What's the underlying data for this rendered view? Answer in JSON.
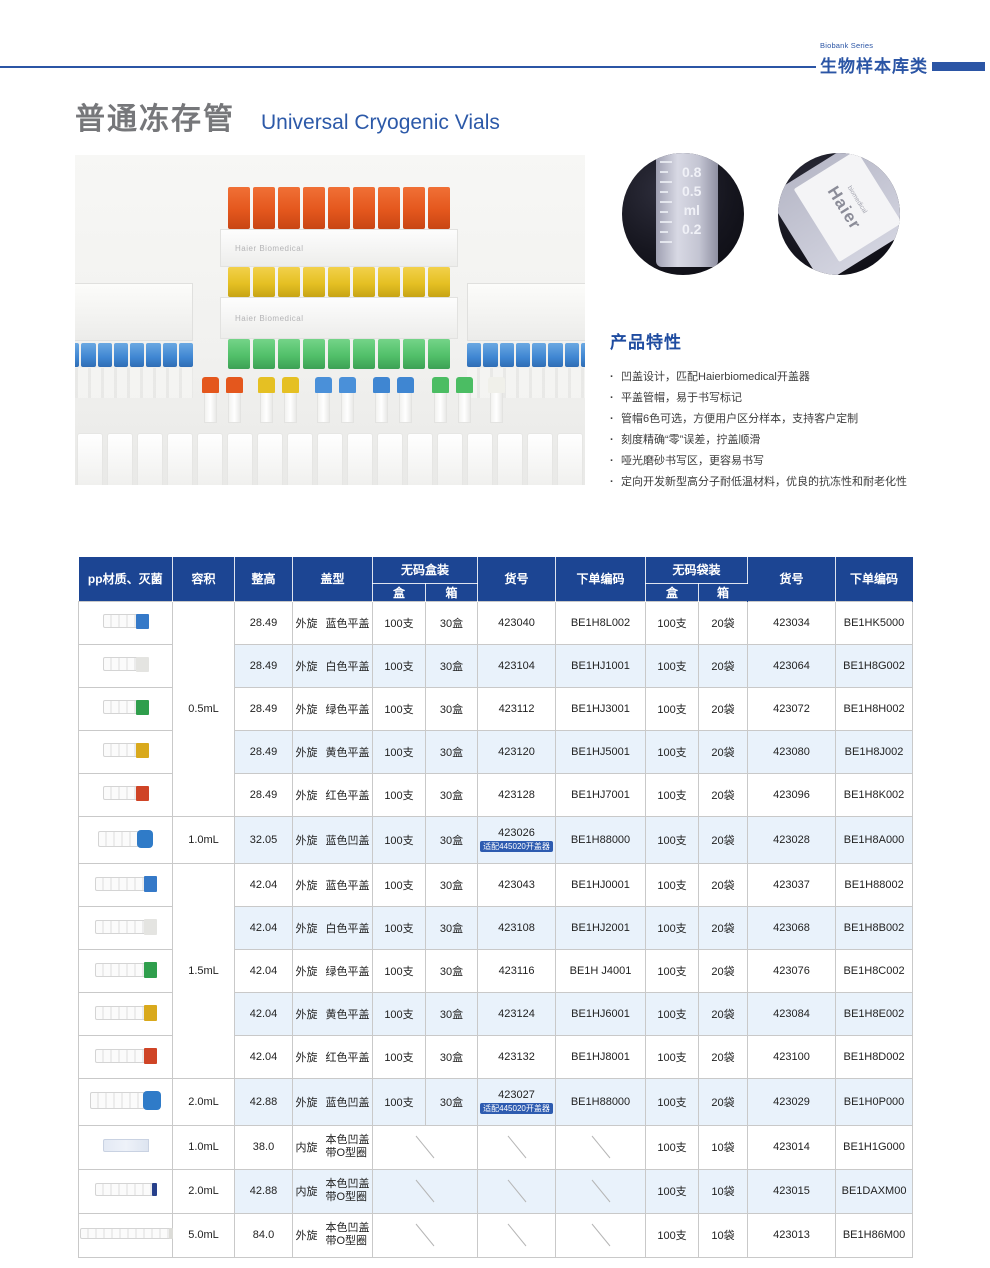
{
  "banner": {
    "series_en": "Biobank Series",
    "series_cn": "生物样本库类",
    "accent_color": "#2b55a5"
  },
  "title": {
    "cn": "普通冻存管",
    "en": "Universal Cryogenic Vials"
  },
  "photo": {
    "rack_label": "Haier Biomedical"
  },
  "detail_circles": {
    "scale": [
      "0.8",
      "0.5",
      "ml",
      "0.2"
    ],
    "brand": "Haier",
    "brand_sub": "biomedical"
  },
  "features": {
    "heading": "产品特性",
    "items": [
      "凹盖设计，匹配Haierbiomedical开盖器",
      "平盖管帽，易于书写标记",
      "管帽6色可选，方便用户区分样本，支持客户定制",
      "刻度精确“零”误差，拧盖顺滑",
      "哑光磨砂书写区，更容易书写",
      "定向开发新型高分子耐低温材料，优良的抗冻性和耐老化性"
    ]
  },
  "table": {
    "headers": {
      "material": "pp材质、灭菌",
      "volume": "容积",
      "height": "整高",
      "cap_type": "盖型",
      "box_group": "无码盒装",
      "bag_group": "无码袋装",
      "box": "盒",
      "carton": "箱",
      "item_no": "货号",
      "order_code": "下单编码"
    },
    "header_bg": "#1c4593",
    "alt_row_bg": "#e9f2fb",
    "rows": [
      {
        "tube": "flat05",
        "cap": "#3579c8",
        "volume": "0.5mL",
        "vspan": 5,
        "height": "28.49",
        "thread": "外旋",
        "cap_name": "蓝色平盖",
        "box": "100支",
        "carton": "30盒",
        "item": "423040",
        "order": "BE1H8L002",
        "bag_box": "100支",
        "bag_carton": "20袋",
        "bag_item": "423034",
        "bag_order": "BE1HK5000"
      },
      {
        "tube": "flat05",
        "cap": "#e4e4e1",
        "height": "28.49",
        "thread": "外旋",
        "cap_name": "白色平盖",
        "box": "100支",
        "carton": "30盒",
        "item": "423104",
        "order": "BE1HJ1001",
        "bag_box": "100支",
        "bag_carton": "20袋",
        "bag_item": "423064",
        "bag_order": "BE1H8G002"
      },
      {
        "tube": "flat05",
        "cap": "#2f9e4c",
        "height": "28.49",
        "thread": "外旋",
        "cap_name": "绿色平盖",
        "box": "100支",
        "carton": "30盒",
        "item": "423112",
        "order": "BE1HJ3001",
        "bag_box": "100支",
        "bag_carton": "20袋",
        "bag_item": "423072",
        "bag_order": "BE1H8H002"
      },
      {
        "tube": "flat05",
        "cap": "#d9a91c",
        "height": "28.49",
        "thread": "外旋",
        "cap_name": "黄色平盖",
        "box": "100支",
        "carton": "30盒",
        "item": "423120",
        "order": "BE1HJ5001",
        "bag_box": "100支",
        "bag_carton": "20袋",
        "bag_item": "423080",
        "bag_order": "BE1H8J002"
      },
      {
        "tube": "flat05",
        "cap": "#cf4426",
        "height": "28.49",
        "thread": "外旋",
        "cap_name": "红色平盖",
        "box": "100支",
        "carton": "30盒",
        "item": "423128",
        "order": "BE1HJ7001",
        "bag_box": "100支",
        "bag_carton": "20袋",
        "bag_item": "423096",
        "bag_order": "BE1H8K002"
      },
      {
        "tube": "round10",
        "cap": "#2f7bc8",
        "volume": "1.0mL",
        "vspan": 1,
        "height": "32.05",
        "thread": "外旋",
        "cap_name": "蓝色凹盖",
        "box": "100支",
        "carton": "30盒",
        "item": "423026",
        "badge": "适配445020开盖器",
        "order": "BE1H88000",
        "bag_box": "100支",
        "bag_carton": "20袋",
        "bag_item": "423028",
        "bag_order": "BE1H8A000",
        "tall": true
      },
      {
        "tube": "flat15",
        "cap": "#3579c8",
        "volume": "1.5mL",
        "vspan": 5,
        "height": "42.04",
        "thread": "外旋",
        "cap_name": "蓝色平盖",
        "box": "100支",
        "carton": "30盒",
        "item": "423043",
        "order": "BE1HJ0001",
        "bag_box": "100支",
        "bag_carton": "20袋",
        "bag_item": "423037",
        "bag_order": "BE1H88002"
      },
      {
        "tube": "flat15",
        "cap": "#e4e4e1",
        "height": "42.04",
        "thread": "外旋",
        "cap_name": "白色平盖",
        "box": "100支",
        "carton": "30盒",
        "item": "423108",
        "order": "BE1HJ2001",
        "bag_box": "100支",
        "bag_carton": "20袋",
        "bag_item": "423068",
        "bag_order": "BE1H8B002"
      },
      {
        "tube": "flat15",
        "cap": "#2f9e4c",
        "height": "42.04",
        "thread": "外旋",
        "cap_name": "绿色平盖",
        "box": "100支",
        "carton": "30盒",
        "item": "423116",
        "order": "BE1H J4001",
        "bag_box": "100支",
        "bag_carton": "20袋",
        "bag_item": "423076",
        "bag_order": "BE1H8C002"
      },
      {
        "tube": "flat15",
        "cap": "#d9a91c",
        "height": "42.04",
        "thread": "外旋",
        "cap_name": "黄色平盖",
        "box": "100支",
        "carton": "30盒",
        "item": "423124",
        "order": "BE1HJ6001",
        "bag_box": "100支",
        "bag_carton": "20袋",
        "bag_item": "423084",
        "bag_order": "BE1H8E002"
      },
      {
        "tube": "flat15",
        "cap": "#cf4426",
        "height": "42.04",
        "thread": "外旋",
        "cap_name": "红色平盖",
        "box": "100支",
        "carton": "30盒",
        "item": "423132",
        "order": "BE1HJ8001",
        "bag_box": "100支",
        "bag_carton": "20袋",
        "bag_item": "423100",
        "bag_order": "BE1H8D002"
      },
      {
        "tube": "round20",
        "cap": "#2f7bc8",
        "volume": "2.0mL",
        "vspan": 1,
        "height": "42.88",
        "thread": "外旋",
        "cap_name": "蓝色凹盖",
        "box": "100支",
        "carton": "30盒",
        "item": "423027",
        "badge": "适配445020开盖器",
        "order": "BE1H88000",
        "bag_box": "100支",
        "bag_carton": "20袋",
        "bag_item": "423029",
        "bag_order": "BE1H0P000",
        "tall": true
      },
      {
        "tube": "int10",
        "cap": "",
        "volume": "1.0mL",
        "vspan": 1,
        "height": "38.0",
        "thread": "内旋",
        "cap_name": "本色凹盖",
        "cap_name2": "带O型圈",
        "na": true,
        "bag_box": "100支",
        "bag_carton": "10袋",
        "bag_item": "423014",
        "bag_order": "BE1H1G000"
      },
      {
        "tube": "int20",
        "cap": "#27408b",
        "volume": "2.0mL",
        "vspan": 1,
        "height": "42.88",
        "thread": "内旋",
        "cap_name": "本色凹盖",
        "cap_name2": "带O型圈",
        "na": true,
        "bag_box": "100支",
        "bag_carton": "10袋",
        "bag_item": "423015",
        "bag_order": "BE1DAXM00"
      },
      {
        "tube": "ext50",
        "cap": "#dcdcd8",
        "volume": "5.0mL",
        "vspan": 1,
        "height": "84.0",
        "thread": "外旋",
        "cap_name": "本色凹盖",
        "cap_name2": "带O型圈",
        "na": true,
        "bag_box": "100支",
        "bag_carton": "10袋",
        "bag_item": "423013",
        "bag_order": "BE1H86M00"
      }
    ]
  }
}
